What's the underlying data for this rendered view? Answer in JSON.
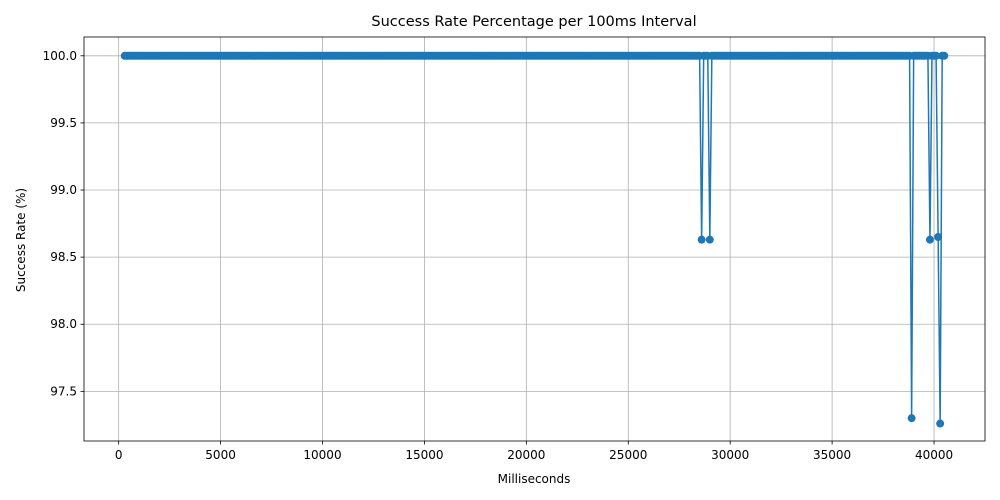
{
  "chart_data": {
    "type": "line",
    "title": "Success Rate Percentage per 100ms Interval",
    "xlabel": "Milliseconds",
    "ylabel": "Success Rate (%)",
    "xlim": [
      -1700,
      42500
    ],
    "ylim": [
      97.13,
      100.14
    ],
    "x_ticks": [
      0,
      5000,
      10000,
      15000,
      20000,
      25000,
      30000,
      35000,
      40000
    ],
    "y_ticks": [
      97.5,
      98.0,
      98.5,
      99.0,
      99.5,
      100.0
    ],
    "y_tick_labels": [
      "97.5",
      "98.0",
      "98.5",
      "99.0",
      "99.5",
      "100.0"
    ],
    "grid": true,
    "legend": "none",
    "color": "#1f77b4",
    "x_start": 300,
    "x_step": 100,
    "x_end": 40500,
    "default_value": 100.0,
    "dips": [
      {
        "x": 28600,
        "y": 98.63
      },
      {
        "x": 29000,
        "y": 98.63
      },
      {
        "x": 38900,
        "y": 97.3
      },
      {
        "x": 39800,
        "y": 98.63
      },
      {
        "x": 40200,
        "y": 98.65
      },
      {
        "x": 40300,
        "y": 97.26
      }
    ]
  }
}
